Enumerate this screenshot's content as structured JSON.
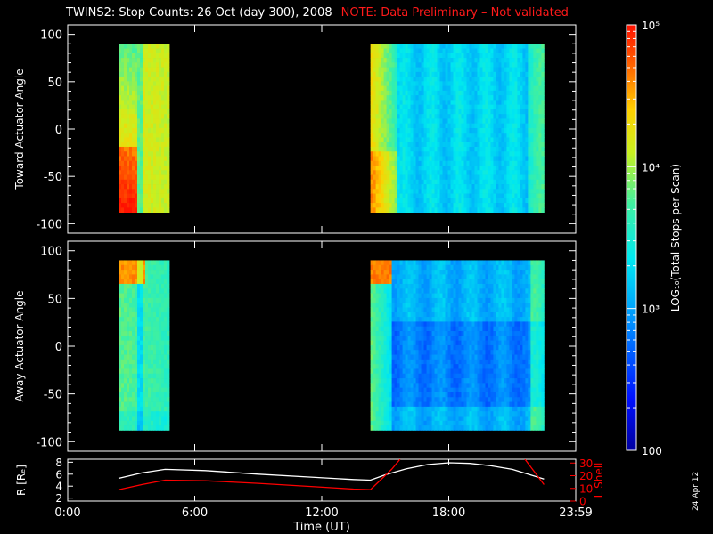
{
  "header": {
    "title": "TWINS2: Stop Counts: 26 Oct (day 300), 2008",
    "note": "NOTE: Data Preliminary – Not validated"
  },
  "datestamp": "24 Apr 12",
  "colors": {
    "background": "#000000",
    "foreground": "#ffffff",
    "note": "#ff1a1a",
    "lshell": "#ff0000",
    "radius": "#ffffff"
  },
  "chart_data": [
    {
      "type": "heatmap",
      "name": "toward",
      "ylabel": "Toward Actuator Angle",
      "ylim": [
        -110,
        110
      ],
      "yticks": [
        100,
        50,
        0,
        -50,
        -100
      ],
      "xlim": [
        0,
        24
      ],
      "angle_range": [
        -88,
        90
      ],
      "blocks": [
        {
          "t_start": 2.4,
          "t_end": 4.8,
          "summary": "high counts (~1e4-5e4), orange/red at low angles"
        },
        {
          "t_start": 14.3,
          "t_end": 22.5,
          "summary": "orange near start, mostly ~1e3-2e3 (cyan/blue) after 16:00"
        }
      ]
    },
    {
      "type": "heatmap",
      "name": "away",
      "ylabel": "Away Actuator Angle",
      "ylim": [
        -110,
        110
      ],
      "yticks": [
        100,
        50,
        0,
        -50,
        -100
      ],
      "xlim": [
        0,
        24
      ],
      "angle_range": [
        -88,
        90
      ],
      "blocks": [
        {
          "t_start": 2.4,
          "t_end": 4.8,
          "summary": "red near +90 deg, mostly ~3e3-1e4"
        },
        {
          "t_start": 14.3,
          "t_end": 22.5,
          "summary": "red near +90 deg at start, mostly ~500-2e3 (blue)"
        }
      ]
    },
    {
      "type": "line",
      "name": "orbit",
      "ylabel_left": "R [Rₑ]",
      "ylabel_right": "L Shell",
      "yticks_left": [
        8,
        6,
        4,
        2
      ],
      "yticks_right": [
        30,
        20,
        10,
        0
      ],
      "ylim_left": [
        1.5,
        8.5
      ],
      "ylim_right": [
        0,
        33
      ],
      "xlim": [
        0,
        24
      ],
      "xticks": [
        "0:00",
        "6:00",
        "12:00",
        "18:00",
        "23:59"
      ],
      "xtick_values": [
        0,
        6,
        12,
        18,
        24
      ],
      "xlabel": "Time (UT)",
      "series": [
        {
          "name": "R",
          "axis": "left",
          "x": [
            2.4,
            3.5,
            4.6,
            6.5,
            9,
            11.5,
            13.5,
            14.3,
            15,
            16,
            17,
            18,
            19,
            20,
            21,
            22.5
          ],
          "y": [
            5.3,
            6.2,
            6.8,
            6.6,
            6.0,
            5.5,
            5.1,
            5.0,
            5.9,
            6.9,
            7.6,
            7.9,
            7.8,
            7.4,
            6.8,
            5.2
          ]
        },
        {
          "name": "L Shell",
          "axis": "right",
          "segments": [
            {
              "x": [
                2.4,
                3.5,
                4.6,
                6.5,
                9,
                11.5,
                13.5,
                14.3,
                15.3,
                15.7
              ],
              "y": [
                9,
                13,
                16.5,
                16,
                14,
                11.5,
                9.5,
                9,
                25,
                33
              ]
            },
            {
              "x": [
                21.6,
                22.5
              ],
              "y": [
                33,
                13
              ]
            }
          ]
        }
      ]
    }
  ],
  "colorbar": {
    "label": "LOG₁₀(Total Stops per Scan)",
    "ticks": [
      "10⁵",
      "10⁴",
      "10³",
      "100"
    ],
    "tick_values": [
      100000,
      10000,
      1000,
      100
    ],
    "range": [
      100,
      100000
    ],
    "scale": "log"
  }
}
